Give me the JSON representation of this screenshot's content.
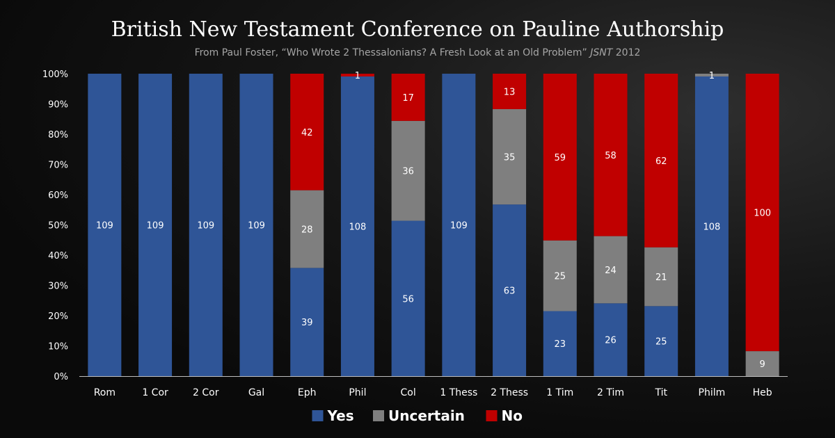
{
  "chart_data": {
    "type": "bar",
    "stacked": "percent",
    "title": "British New Testament Conference on Pauline Authorship",
    "subtitle": "From Paul Foster, “Who Wrote 2 Thessalonians? A Fresh Look at an Old Problem”",
    "subtitle_journal": "JSNT",
    "subtitle_year": "2012",
    "categories": [
      "Rom",
      "1 Cor",
      "2 Cor",
      "Gal",
      "Eph",
      "Phil",
      "Col",
      "1 Thess",
      "2 Thess",
      "1 Tim",
      "2 Tim",
      "Tit",
      "Philm",
      "Heb"
    ],
    "series": [
      {
        "name": "Yes",
        "color": "#2f5597",
        "values": [
          109,
          109,
          109,
          109,
          39,
          108,
          56,
          109,
          63,
          23,
          26,
          25,
          108,
          0
        ]
      },
      {
        "name": "Uncertain",
        "color": "#7f7f7f",
        "values": [
          0,
          0,
          0,
          0,
          28,
          0,
          36,
          0,
          35,
          25,
          24,
          21,
          1,
          9
        ]
      },
      {
        "name": "No",
        "color": "#c00000",
        "values": [
          0,
          0,
          0,
          0,
          42,
          1,
          17,
          0,
          13,
          59,
          58,
          62,
          0,
          100
        ]
      }
    ],
    "y_ticks": [
      "0%",
      "10%",
      "20%",
      "30%",
      "40%",
      "50%",
      "60%",
      "70%",
      "80%",
      "90%",
      "100%"
    ],
    "ylim": [
      0,
      100
    ],
    "legend": "bottom-center"
  }
}
